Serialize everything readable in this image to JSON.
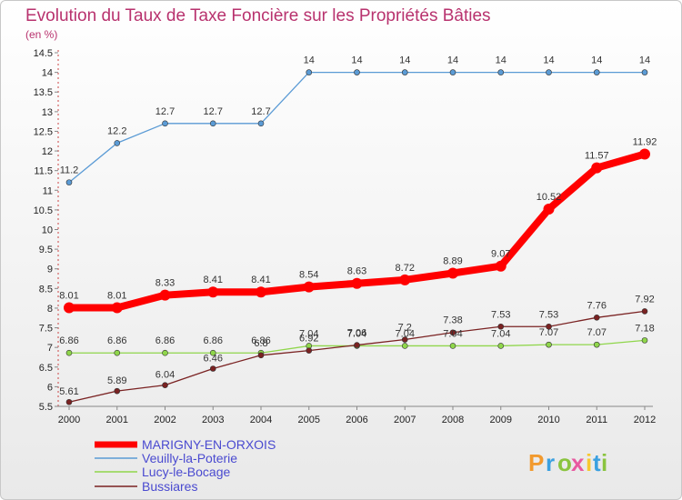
{
  "chart_data": {
    "type": "line",
    "title": "Evolution du Taux de Taxe Foncière sur les Propriétés Bâties",
    "subtitle": "(en %)",
    "x": [
      "2000",
      "2001",
      "2002",
      "2003",
      "2004",
      "2005",
      "2006",
      "2007",
      "2008",
      "2009",
      "2010",
      "2011",
      "2012"
    ],
    "ylim": [
      5.5,
      14.5
    ],
    "yticks": [
      "5.5",
      "6",
      "6.5",
      "7",
      "7.5",
      "8",
      "8.5",
      "9",
      "9.5",
      "10",
      "10.5",
      "11",
      "11.5",
      "12",
      "12.5",
      "13",
      "13.5",
      "14",
      "14.5"
    ],
    "series": [
      {
        "name": "MARIGNY-EN-ORXOIS",
        "color": "#ff0000",
        "values": [
          8.01,
          8.01,
          8.33,
          8.41,
          8.41,
          8.54,
          8.63,
          8.72,
          8.89,
          9.07,
          10.52,
          11.57,
          11.92
        ],
        "labels": [
          "8.01",
          "8.01",
          "8.33",
          "8.41",
          "8.41",
          "8.54",
          "8.63",
          "8.72",
          "8.89",
          "9.07",
          "10.52",
          "11.57",
          "11.92"
        ]
      },
      {
        "name": "Veuilly-la-Poterie",
        "color": "#5b9bd5",
        "values": [
          11.2,
          12.2,
          12.7,
          12.7,
          12.7,
          14,
          14,
          14,
          14,
          14,
          14,
          14,
          14
        ],
        "labels": [
          "11.2",
          "12.2",
          "12.7",
          "12.7",
          "12.7",
          "14",
          "14",
          "14",
          "14",
          "14",
          "14",
          "14",
          "14"
        ]
      },
      {
        "name": "Lucy-le-Bocage",
        "color": "#8fd64b",
        "values": [
          6.86,
          6.86,
          6.86,
          6.86,
          6.86,
          7.04,
          7.04,
          7.04,
          7.04,
          7.04,
          7.07,
          7.07,
          7.18
        ],
        "labels": [
          "6.86",
          "6.86",
          "6.86",
          "6.86",
          "6.86",
          "7.04",
          "7.04",
          "7.04",
          "7.04",
          "7.04",
          "7.07",
          "7.07",
          "7.18"
        ]
      },
      {
        "name": "Bussiares",
        "color": "#7a2222",
        "values": [
          5.61,
          5.89,
          6.04,
          6.46,
          6.8,
          6.92,
          7.06,
          7.2,
          7.38,
          7.53,
          7.53,
          7.76,
          7.92
        ],
        "labels": [
          "5.61",
          "5.89",
          "6.04",
          "6.46",
          "6.8",
          "6.92",
          "7.06",
          "7.2",
          "7.38",
          "7.53",
          "7.53",
          "7.76",
          "7.92"
        ]
      }
    ],
    "legend_position": "bottom-left",
    "grid": false
  },
  "branding": {
    "logo_text": "Proxiti",
    "colors": [
      "#f29a2e",
      "#3aa0e0",
      "#8ac43f",
      "#e85aa0",
      "#f7c830",
      "#3aa0e0",
      "#8ac43f"
    ]
  }
}
